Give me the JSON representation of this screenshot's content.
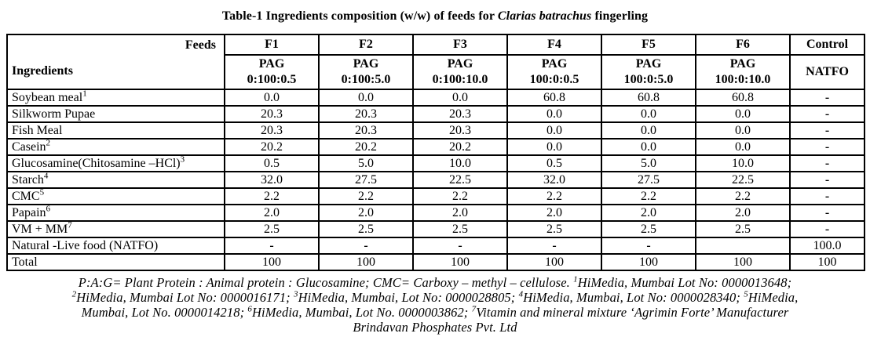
{
  "colors": {
    "background": "#ffffff",
    "text": "#000000",
    "border": "#000000"
  },
  "title": {
    "segments": [
      {
        "text": "Table-1 Ingredients composition (w/w) of feeds for "
      },
      {
        "text": "Clarias batrachus",
        "italic": true
      },
      {
        "text": " fingerling"
      }
    ]
  },
  "table": {
    "corner": {
      "top_right": "Feeds",
      "bottom_left": "Ingredients"
    },
    "feeds": [
      {
        "code": "F1",
        "pag": "PAG",
        "ratio": "0:100:0.5"
      },
      {
        "code": "F2",
        "pag": "PAG",
        "ratio": "0:100:5.0"
      },
      {
        "code": "F3",
        "pag": "PAG",
        "ratio": "0:100:10.0"
      },
      {
        "code": "F4",
        "pag": "PAG",
        "ratio": "100:0:0.5"
      },
      {
        "code": "F5",
        "pag": "PAG",
        "ratio": "100:0:5.0"
      },
      {
        "code": "F6",
        "pag": "PAG",
        "ratio": "100:0:10.0"
      }
    ],
    "control": {
      "label": "Control",
      "sub": "NATFO"
    },
    "rows": [
      {
        "name": "Soybean meal",
        "sup": "1",
        "values": [
          "0.0",
          "0.0",
          "0.0",
          "60.8",
          "60.8",
          "60.8",
          "-"
        ]
      },
      {
        "name": "Silkworm Pupae",
        "sup": "",
        "values": [
          "20.3",
          "20.3",
          "20.3",
          "0.0",
          "0.0",
          "0.0",
          "-"
        ]
      },
      {
        "name": "Fish Meal",
        "sup": "",
        "values": [
          "20.3",
          "20.3",
          "20.3",
          "0.0",
          "0.0",
          "0.0",
          "-"
        ]
      },
      {
        "name": "Casein",
        "sup": "2",
        "values": [
          "20.2",
          "20.2",
          "20.2",
          "0.0",
          "0.0",
          "0.0",
          "-"
        ]
      },
      {
        "name": "Glucosamine(Chitosamine –HCl)",
        "sup": "3",
        "values": [
          "0.5",
          "5.0",
          "10.0",
          "0.5",
          "5.0",
          "10.0",
          "-"
        ]
      },
      {
        "name": "Starch",
        "sup": "4",
        "values": [
          "32.0",
          "27.5",
          "22.5",
          "32.0",
          "27.5",
          "22.5",
          "-"
        ]
      },
      {
        "name": "CMC",
        "sup": "5",
        "values": [
          "2.2",
          "2.2",
          "2.2",
          "2.2",
          "2.2",
          "2.2",
          "-"
        ]
      },
      {
        "name": "Papain",
        "sup": "6",
        "values": [
          "2.0",
          "2.0",
          "2.0",
          "2.0",
          "2.0",
          "2.0",
          "-"
        ]
      },
      {
        "name": "VM + MM",
        "sup": "7",
        "values": [
          "2.5",
          "2.5",
          "2.5",
          "2.5",
          "2.5",
          "2.5",
          "-"
        ]
      },
      {
        "name": "Natural -Live food (NATFO)",
        "sup": "",
        "values": [
          "-",
          "-",
          "-",
          "-",
          "-",
          "",
          "100.0"
        ]
      },
      {
        "name": "Total",
        "sup": "",
        "values": [
          "100",
          "100",
          "100",
          "100",
          "100",
          "100",
          "100"
        ]
      }
    ]
  },
  "footnote": {
    "lines": [
      [
        {
          "text": "P:A:G= Plant Protein : Animal protein : Glucosamine; CMC= Carboxy – methyl – cellulose. "
        },
        {
          "sup": "1",
          "text": "HiMedia, Mumbai Lot No: 0000013648;"
        }
      ],
      [
        {
          "sup": "2",
          "text": "HiMedia, Mumbai Lot No: 0000016171; "
        },
        {
          "sup": "3",
          "text": "HiMedia, Mumbai, Lot No: 0000028805; "
        },
        {
          "sup": "4",
          "text": "HiMedia, Mumbai, Lot No: 0000028340;  "
        },
        {
          "sup": "5",
          "text": "HiMedia,"
        }
      ],
      [
        {
          "text": "Mumbai, Lot No. 0000014218;  "
        },
        {
          "sup": "6",
          "text": "HiMedia, Mumbai, Lot No. 0000003862; "
        },
        {
          "sup": "7",
          "text": "Vitamin and mineral mixture  ‘Agrimin Forte’ Manufacturer"
        }
      ],
      [
        {
          "text": "Brindavan Phosphates Pvt. Ltd"
        }
      ]
    ]
  }
}
